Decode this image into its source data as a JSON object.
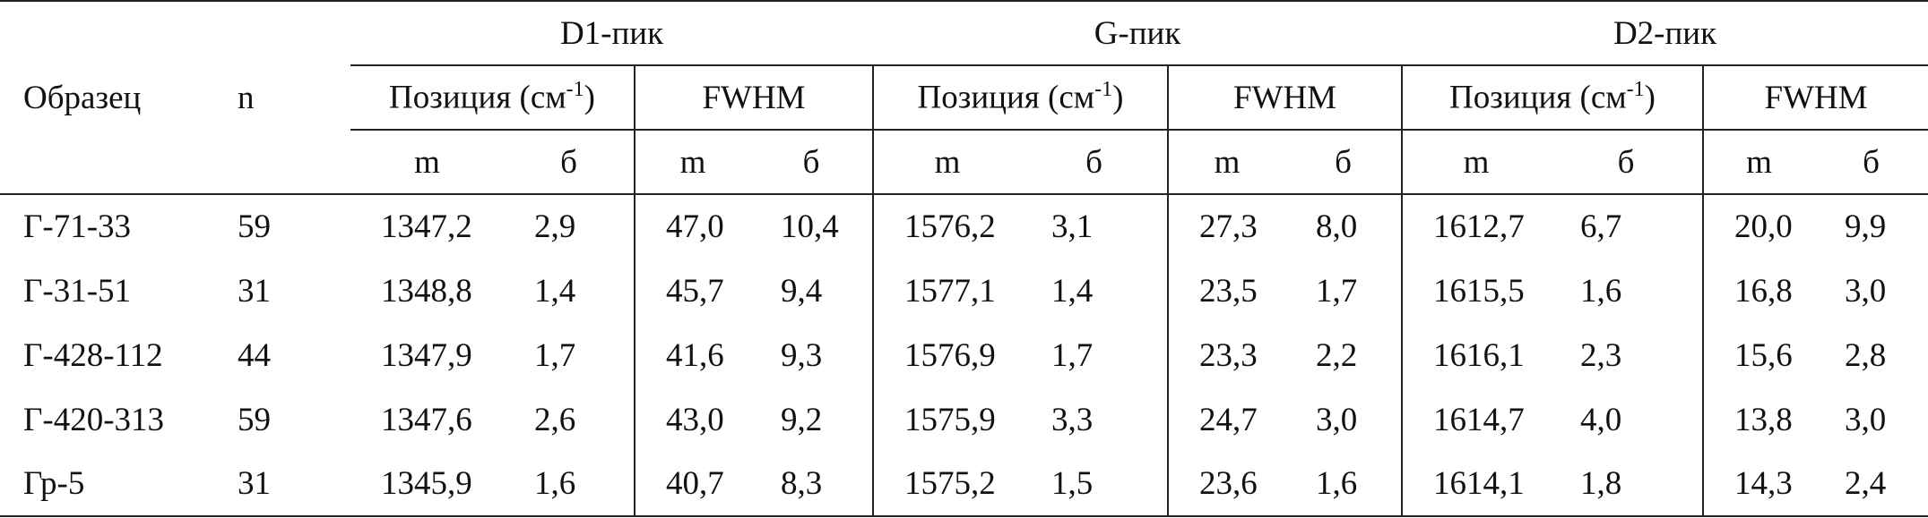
{
  "table": {
    "corner": {
      "sample": "Образец",
      "n": "n"
    },
    "groups": [
      {
        "title": "D1-пик",
        "subgroups": [
          {
            "title": "Позиция (см",
            "sup": "-1",
            "tail": ")"
          },
          {
            "title": "FWHM"
          }
        ]
      },
      {
        "title": "G-пик",
        "subgroups": [
          {
            "title": "Позиция (см",
            "sup": "-1",
            "tail": ")"
          },
          {
            "title": "FWHM"
          }
        ]
      },
      {
        "title": "D2-пик",
        "subgroups": [
          {
            "title": "Позиция (см",
            "sup": "-1",
            "tail": ")"
          },
          {
            "title": "FWHM"
          }
        ]
      }
    ],
    "stats": [
      "m",
      "б"
    ],
    "rows": [
      [
        "Г-71-33",
        "59",
        "1347,2",
        "2,9",
        "47,0",
        "10,4",
        "1576,2",
        "3,1",
        "27,3",
        "8,0",
        "1612,7",
        "6,7",
        "20,0",
        "9,9"
      ],
      [
        "Г-31-51",
        "31",
        "1348,8",
        "1,4",
        "45,7",
        "9,4",
        "1577,1",
        "1,4",
        "23,5",
        "1,7",
        "1615,5",
        "1,6",
        "16,8",
        "3,0"
      ],
      [
        "Г-428-112",
        "44",
        "1347,9",
        "1,7",
        "41,6",
        "9,3",
        "1576,9",
        "1,7",
        "23,3",
        "2,2",
        "1616,1",
        "2,3",
        "15,6",
        "2,8"
      ],
      [
        "Г-420-313",
        "59",
        "1347,6",
        "2,6",
        "43,0",
        "9,2",
        "1575,9",
        "3,3",
        "24,7",
        "3,0",
        "1614,7",
        "4,0",
        "13,8",
        "3,0"
      ],
      [
        "Гр-5",
        "31",
        "1345,9",
        "1,6",
        "40,7",
        "8,3",
        "1575,2",
        "1,5",
        "23,6",
        "1,6",
        "1614,1",
        "1,8",
        "14,3",
        "2,4"
      ]
    ]
  }
}
